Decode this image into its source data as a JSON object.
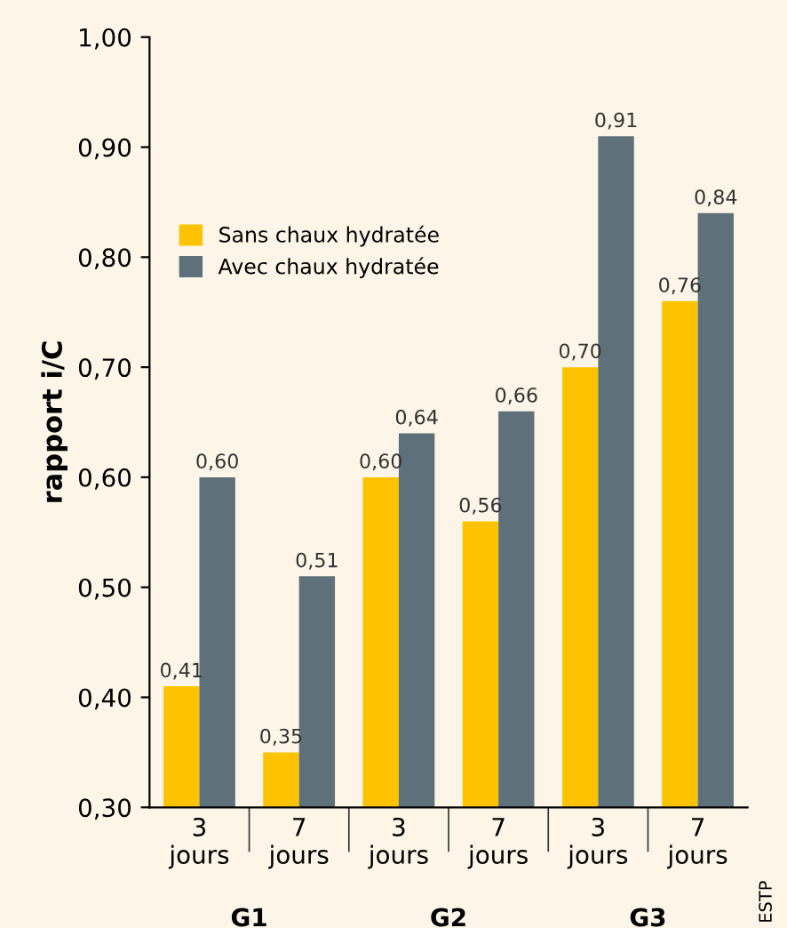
{
  "chart_data": {
    "type": "bar",
    "ylabel": "rapport i/C",
    "categories": [
      "3\njours",
      "7\njours",
      "3\njours",
      "7\njours",
      "3\njours",
      "7\njours"
    ],
    "series": [
      {
        "name": "Sans chaux hydratée",
        "color": "#fdc300",
        "values": [
          0.41,
          0.35,
          0.6,
          0.56,
          0.7,
          0.76
        ],
        "value_labels": [
          "0,41",
          "0,35",
          "0,60",
          "0,56",
          "0,70",
          "0,76"
        ]
      },
      {
        "name": "Avec chaux hydratée",
        "color": "#5e717b",
        "values": [
          0.6,
          0.51,
          0.64,
          0.66,
          0.91,
          0.84
        ],
        "value_labels": [
          "0,60",
          "0,51",
          "0,64",
          "0,66",
          "0,91",
          "0,84"
        ]
      }
    ],
    "ylim": [
      0.3,
      1.0
    ],
    "yticks": [
      {
        "value": 0.3,
        "label": "0,30"
      },
      {
        "value": 0.4,
        "label": "0,40"
      },
      {
        "value": 0.5,
        "label": "0,50"
      },
      {
        "value": 0.6,
        "label": "0,60"
      },
      {
        "value": 0.7,
        "label": "0,70"
      },
      {
        "value": 0.8,
        "label": "0,80"
      },
      {
        "value": 0.9,
        "label": "0,90"
      },
      {
        "value": 1.0,
        "label": "1,00"
      }
    ],
    "annotations": [
      "G1",
      "G2",
      "G3",
      "ESTP"
    ],
    "legend": "top left",
    "grid": false
  }
}
